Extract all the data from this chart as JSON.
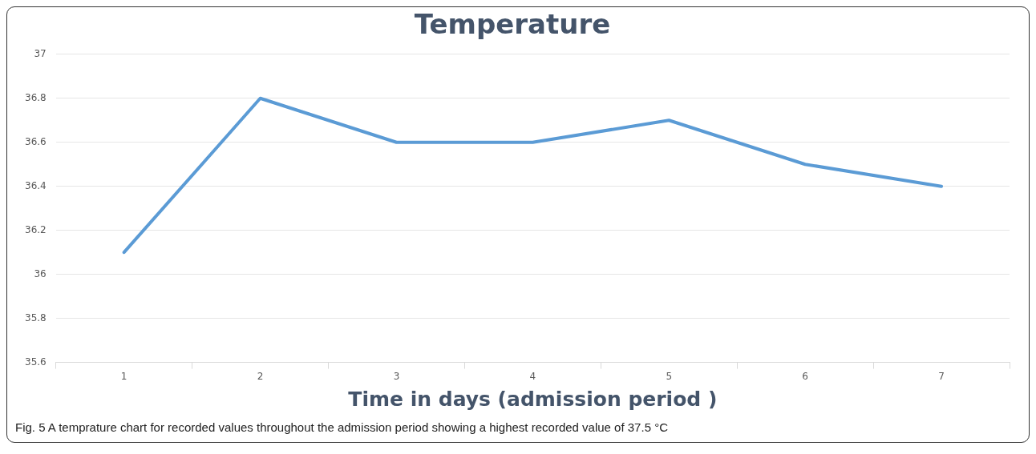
{
  "chart_data": {
    "type": "line",
    "title": "Temperature",
    "xlabel": "Time in days (admission period )",
    "categories": [
      "1",
      "2",
      "3",
      "4",
      "5",
      "6",
      "7"
    ],
    "values": [
      36.1,
      36.8,
      36.6,
      36.6,
      36.7,
      36.5,
      36.4
    ],
    "color": "#5b9bd5",
    "ylim": [
      35.6,
      37
    ],
    "yticks": [
      35.6,
      35.8,
      36,
      36.2,
      36.4,
      36.6,
      36.8,
      37
    ],
    "grid": "y",
    "marker": "none",
    "line_style": "solid",
    "annotations": [
      "Fig. 5 A temprature chart for recorded values throughout the admission period showing a highest recorded value of 37.5 °C"
    ]
  }
}
